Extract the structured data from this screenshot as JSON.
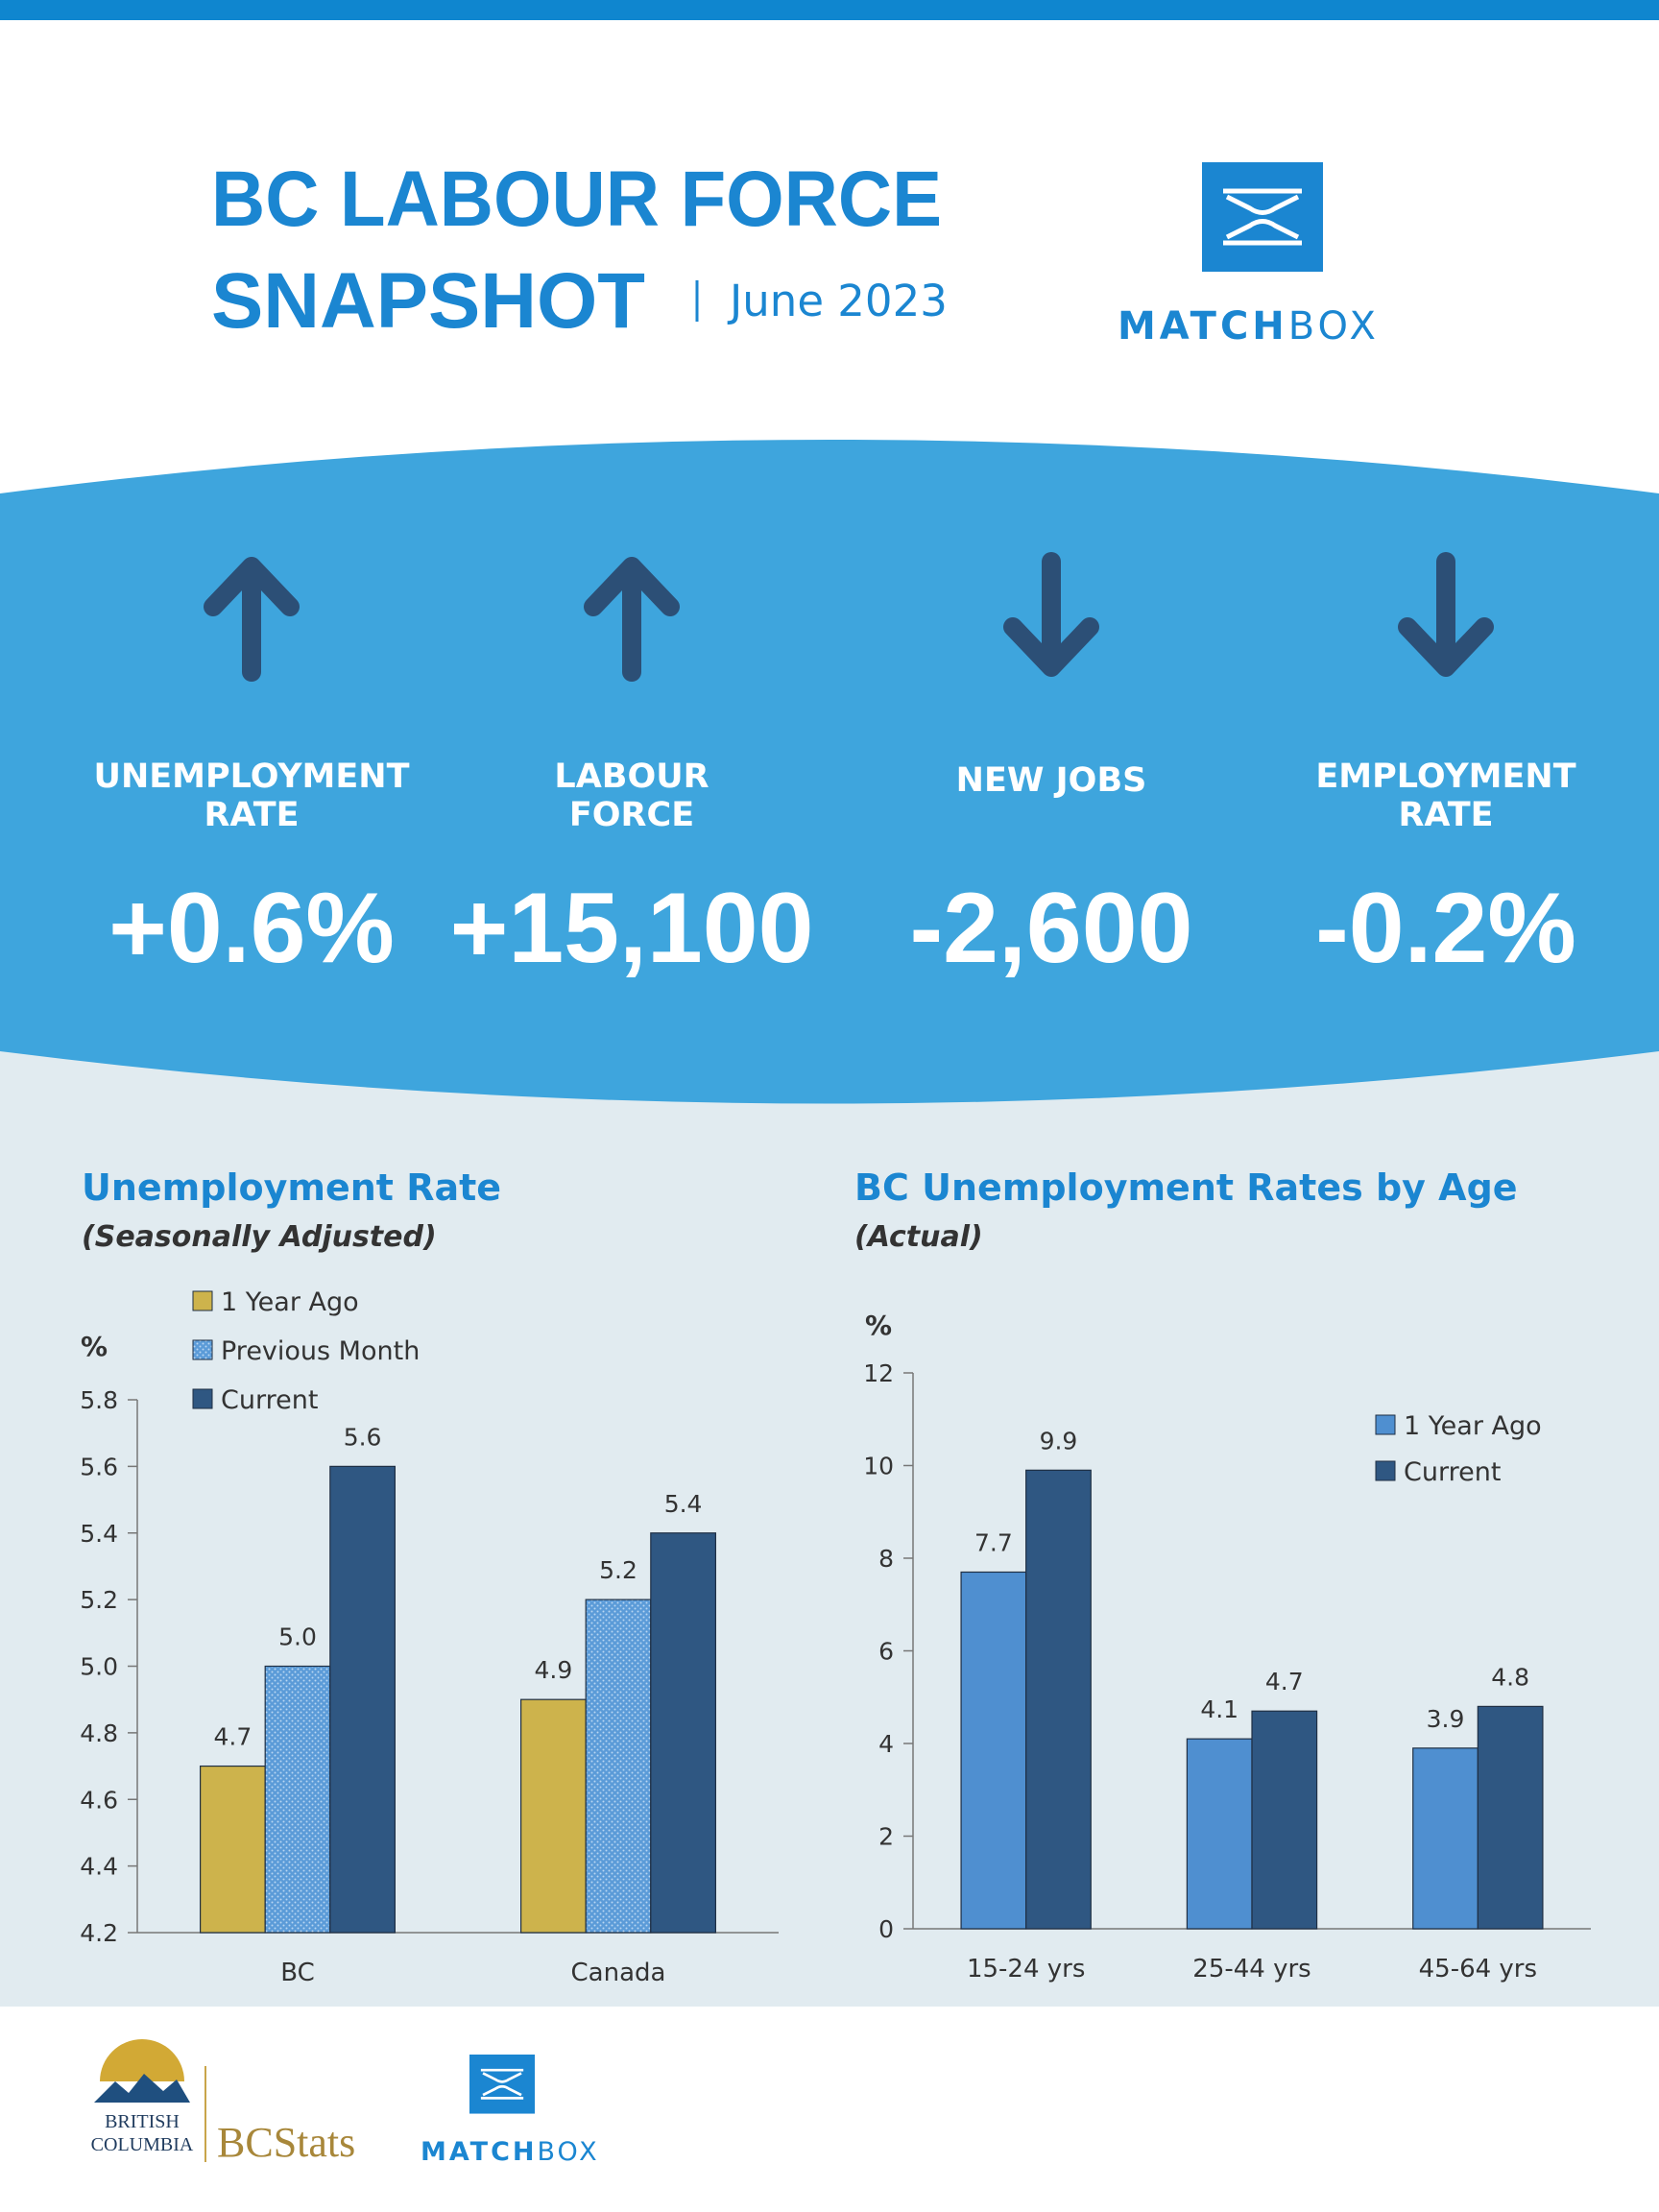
{
  "header": {
    "title": [
      "BC LABOUR FORCE",
      "SNAPSHOT"
    ],
    "date": "June 2023",
    "brand": [
      "MATCH",
      "BOX"
    ]
  },
  "stats": [
    {
      "label": [
        "UNEMPLOYMENT",
        "RATE"
      ],
      "value": "+0.6%",
      "direction": "up"
    },
    {
      "label": [
        "LABOUR",
        "FORCE"
      ],
      "value": "+15,100",
      "direction": "up"
    },
    {
      "label": [
        "NEW JOBS"
      ],
      "value": "-2,600",
      "direction": "down"
    },
    {
      "label": [
        "EMPLOYMENT",
        "RATE"
      ],
      "value": "-0.2%",
      "direction": "down"
    }
  ],
  "chart_data": [
    {
      "type": "bar",
      "title": "Unemployment Rate",
      "subtitle": "(Seasonally Adjusted)",
      "ylabel": "%",
      "categories": [
        "BC",
        "Canada"
      ],
      "series": [
        {
          "name": "1 Year Ago",
          "color": "#cdb34c",
          "values": [
            4.7,
            4.9
          ]
        },
        {
          "name": "Previous Month",
          "color": "#5b9bd8",
          "pattern": "dotted",
          "values": [
            5.0,
            5.2
          ],
          "value_labels": [
            "5.0",
            "5.2"
          ]
        },
        {
          "name": "Current",
          "color": "#2f5782",
          "values": [
            5.6,
            5.4
          ]
        }
      ],
      "ylim": [
        4.2,
        5.8
      ],
      "yticks": [
        4.2,
        4.4,
        4.6,
        4.8,
        {
          "value": 5,
          "label": "5.0"
        },
        5.2,
        5.4,
        5.6,
        5.8
      ],
      "legend": "top-left"
    },
    {
      "type": "bar",
      "title": "BC Unemployment Rates by Age",
      "subtitle": "(Actual)",
      "ylabel": "%",
      "categories": [
        "15-24 yrs",
        "25-44 yrs",
        "45-64 yrs"
      ],
      "series": [
        {
          "name": "1 Year Ago",
          "color": "#4f8fd0",
          "values": [
            7.7,
            4.1,
            3.9
          ]
        },
        {
          "name": "Current",
          "color": "#2f5782",
          "values": [
            9.9,
            4.7,
            4.8
          ]
        }
      ],
      "ylim": [
        0,
        12
      ],
      "yticks": [
        0,
        2,
        4,
        6,
        8,
        10,
        12
      ],
      "legend": "top-right"
    }
  ],
  "footer": {
    "province": [
      "BRITISH",
      "COLUMBIA"
    ],
    "agency": "BCStats",
    "brand": [
      "MATCH",
      "BOX"
    ]
  }
}
